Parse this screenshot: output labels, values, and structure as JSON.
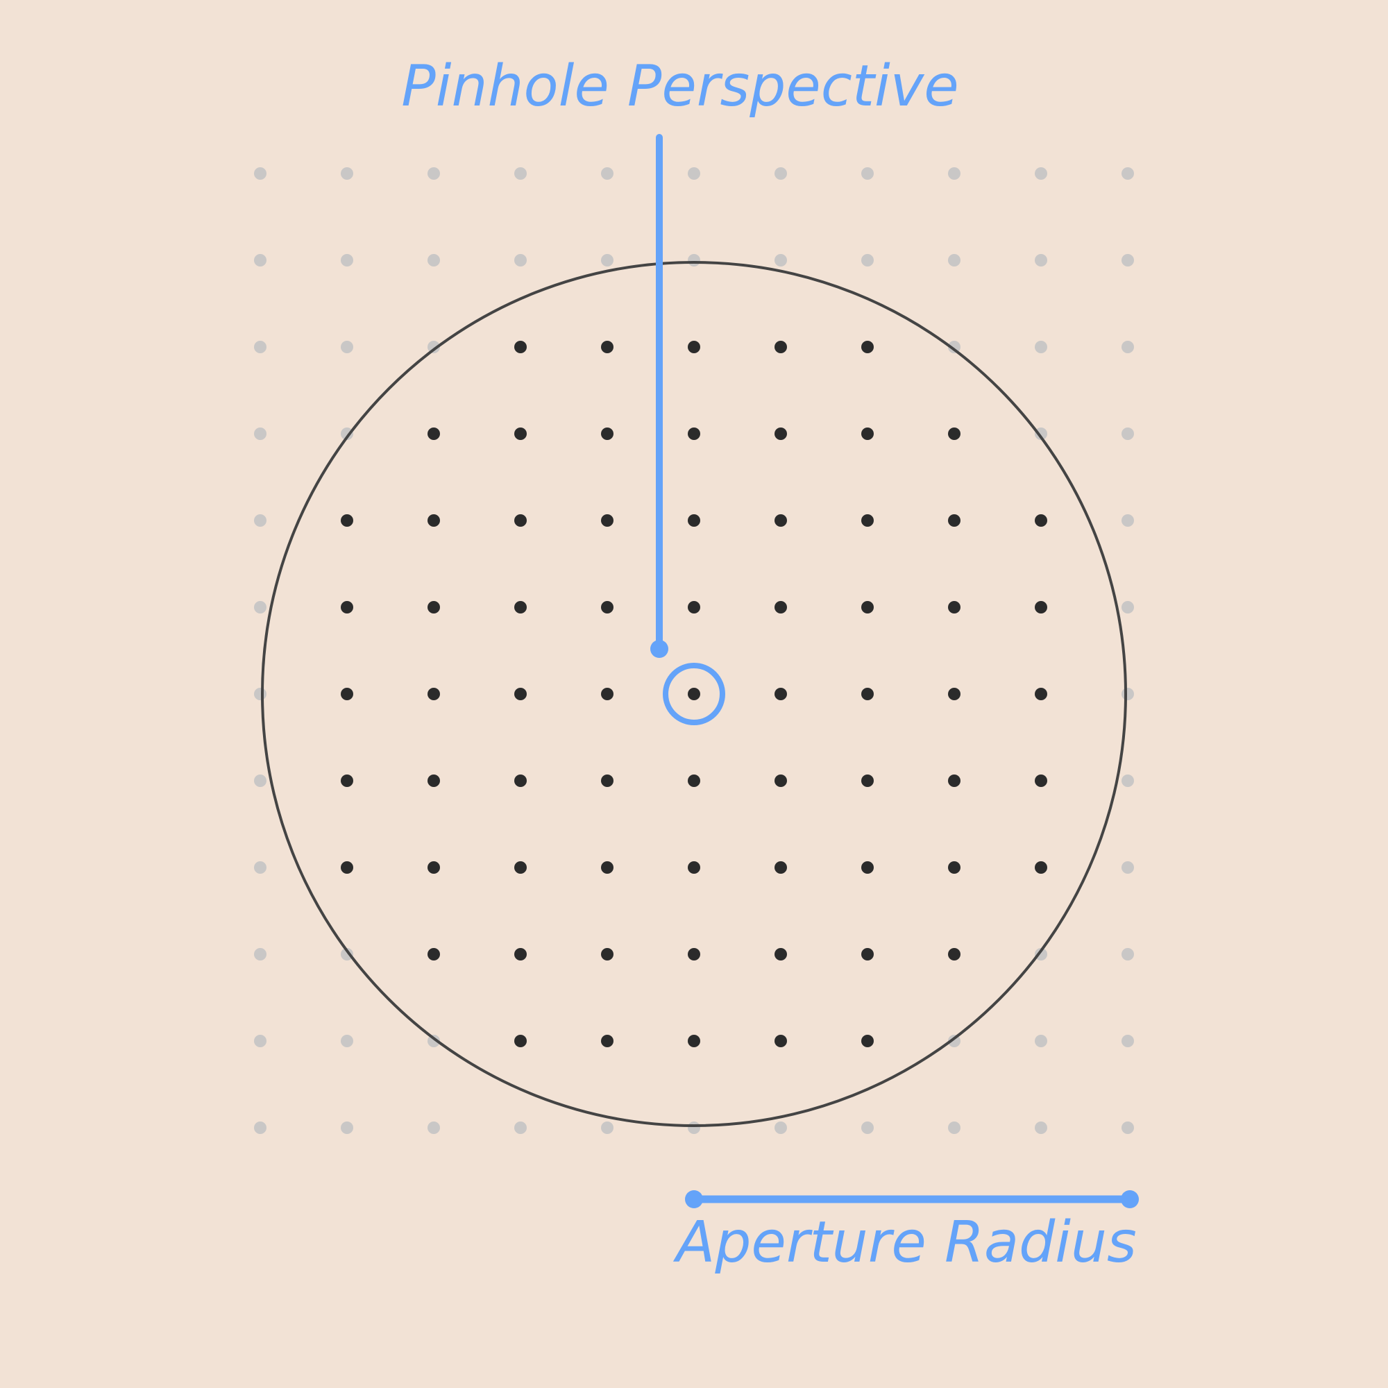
{
  "diagram": {
    "title": "Pinhole Perspective",
    "measure_label": "Aperture Radius",
    "grid": {
      "rows": 12,
      "cols": 11,
      "center": [
        6,
        5
      ]
    },
    "colors": {
      "background": "#f2e2d5",
      "accent": "#64a3f9",
      "circle_stroke": "#444444",
      "dot_inside": "#2b2b2b",
      "dot_edge": "#6b6b6b",
      "dot_outside": "#c9c7c6"
    }
  }
}
